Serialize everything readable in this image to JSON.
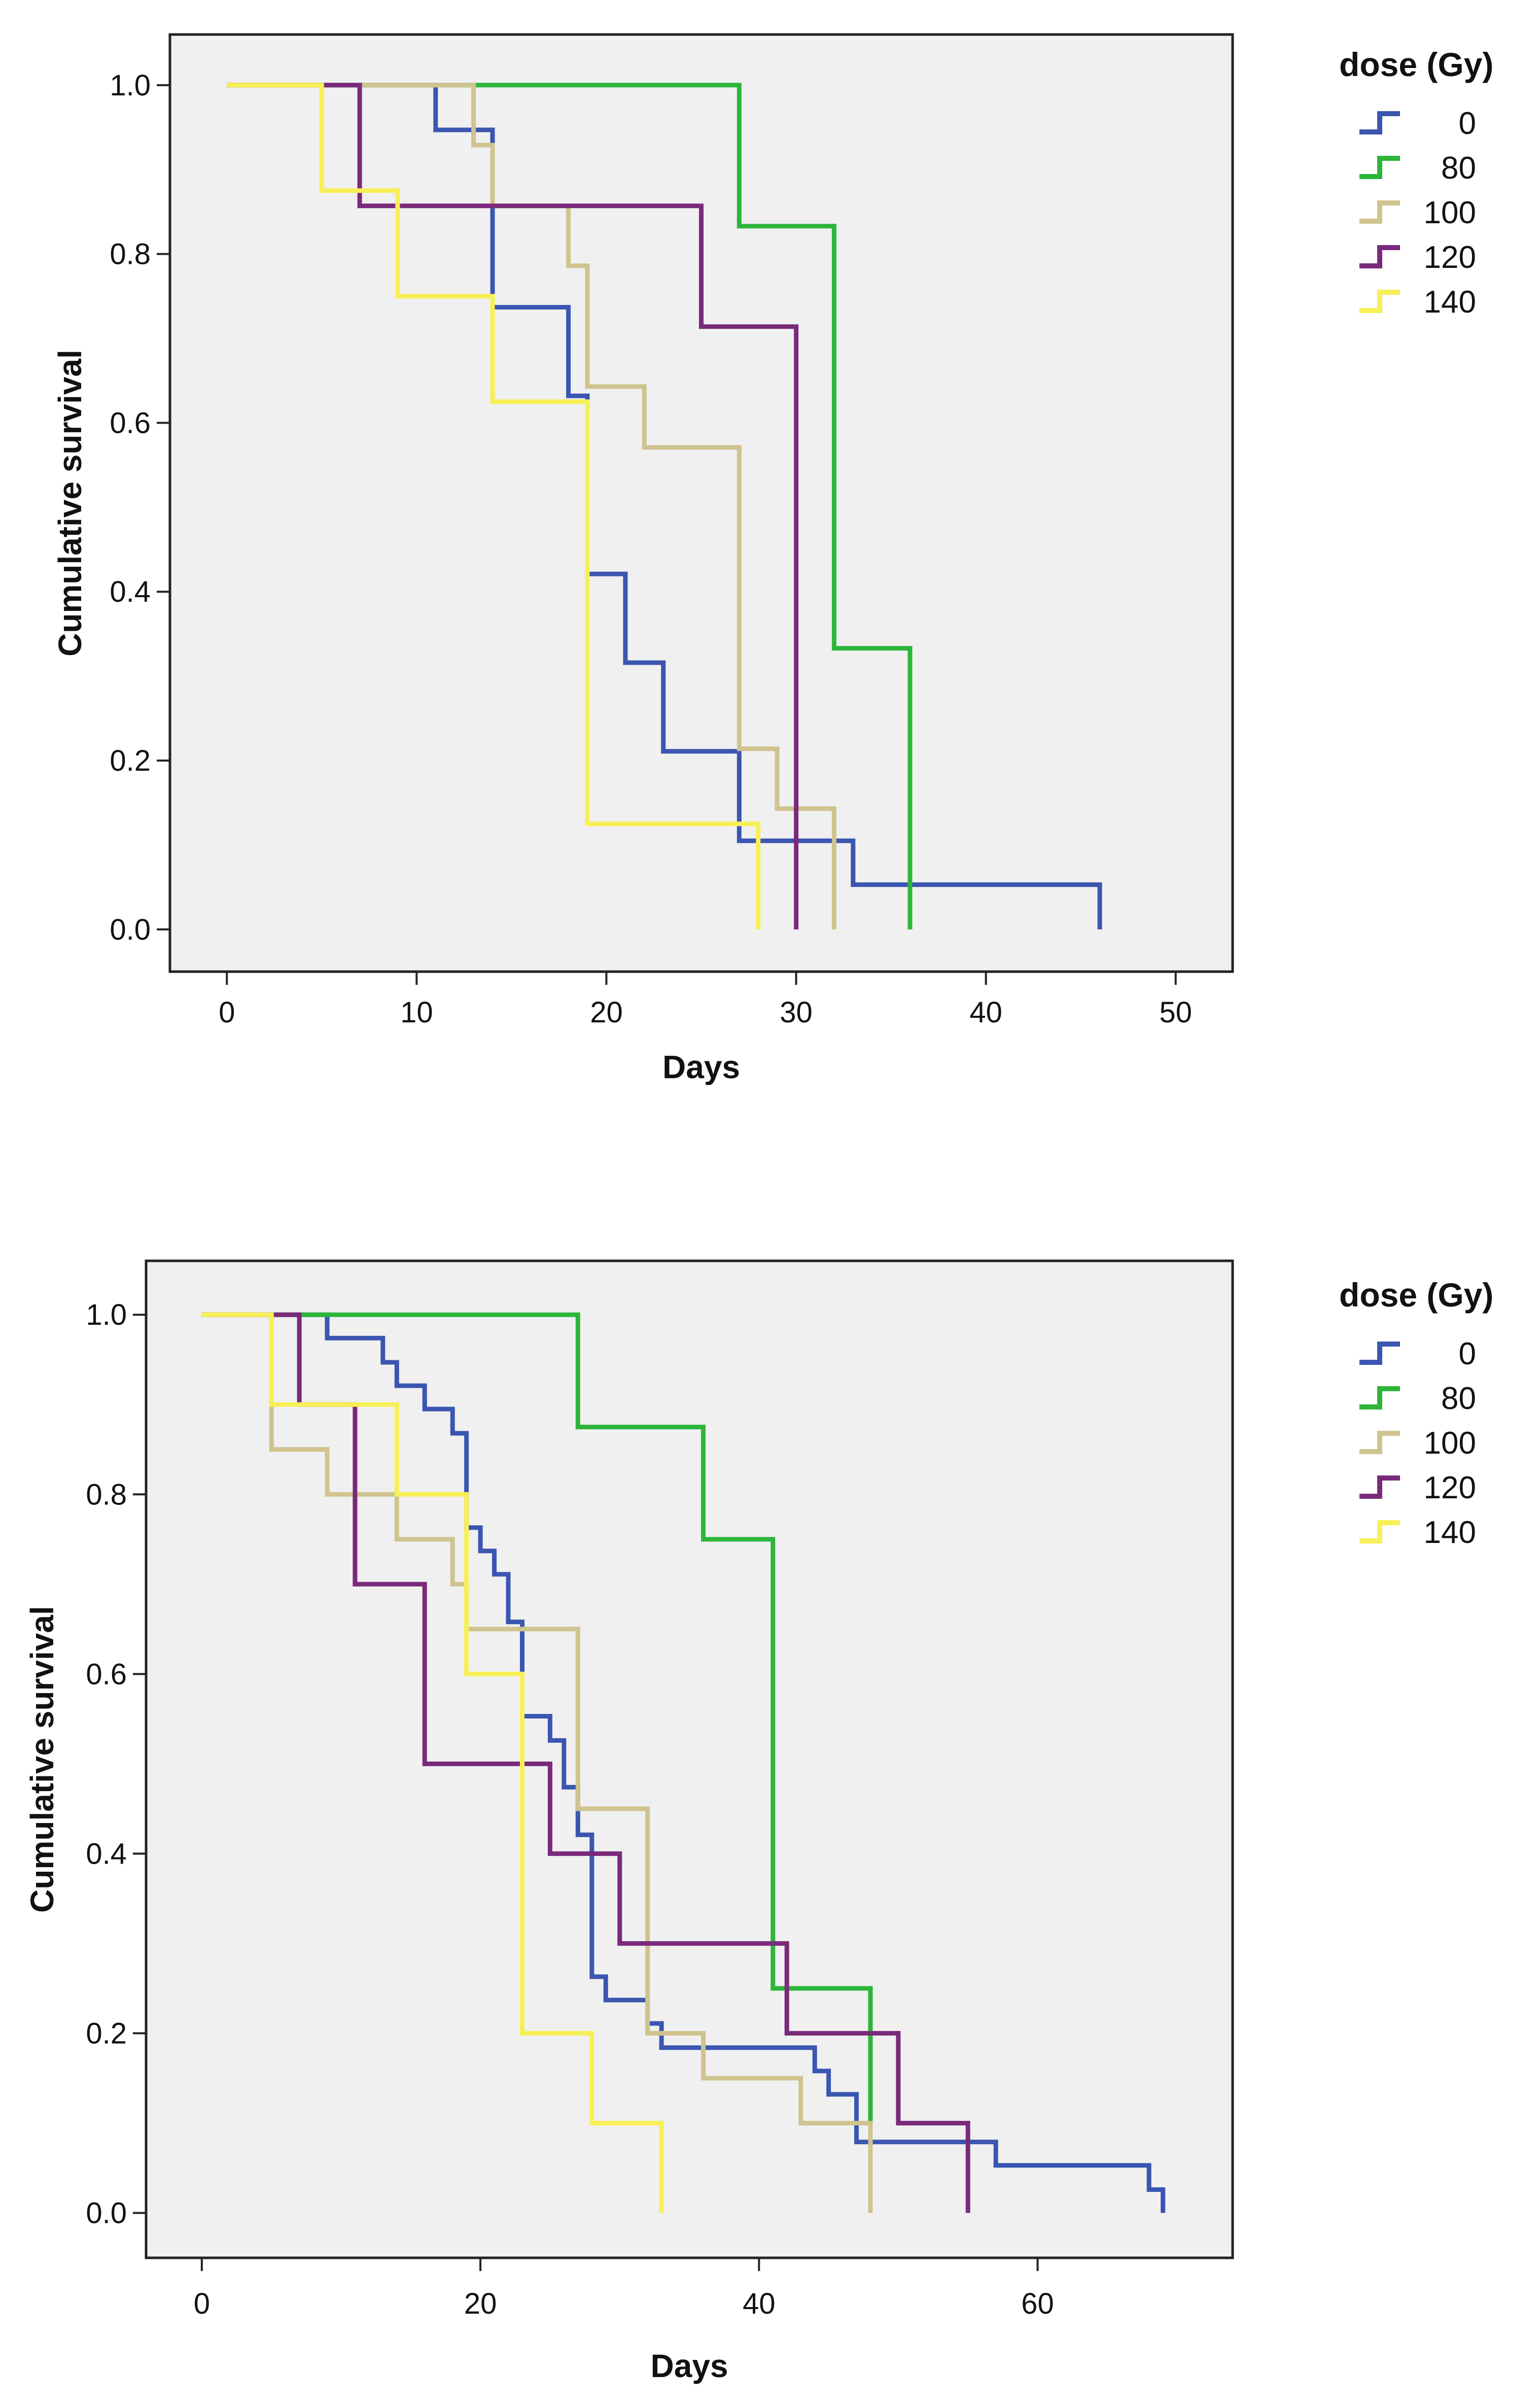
{
  "chart_data": [
    {
      "type": "line",
      "subtype": "kaplan-meier-step",
      "xlabel": "Days",
      "ylabel": "Cumulative survival",
      "xlim": [
        -3,
        53
      ],
      "ylim": [
        -0.05,
        1.06
      ],
      "xticks": [
        0,
        10,
        20,
        30,
        40,
        50
      ],
      "yticks": [
        0.0,
        0.2,
        0.4,
        0.6,
        0.8,
        1.0
      ],
      "xtick_labels": [
        "0",
        "10",
        "20",
        "30",
        "40",
        "50"
      ],
      "ytick_labels": [
        "0.0",
        "0.2",
        "0.4",
        "0.6",
        "0.8",
        "1.0"
      ],
      "legend_title": "dose (Gy)",
      "legend_position": "right",
      "series": [
        {
          "name": "0",
          "color": "#3a56b0",
          "points": [
            [
              0,
              1.0
            ],
            [
              11,
              1.0
            ],
            [
              11,
              0.947
            ],
            [
              14,
              0.947
            ],
            [
              14,
              0.737
            ],
            [
              18,
              0.737
            ],
            [
              18,
              0.632
            ],
            [
              19,
              0.632
            ],
            [
              19,
              0.421
            ],
            [
              21,
              0.421
            ],
            [
              21,
              0.316
            ],
            [
              23,
              0.316
            ],
            [
              23,
              0.211
            ],
            [
              27,
              0.211
            ],
            [
              27,
              0.105
            ],
            [
              33,
              0.105
            ],
            [
              33,
              0.053
            ],
            [
              46,
              0.053
            ],
            [
              46,
              0.0
            ]
          ]
        },
        {
          "name": "80",
          "color": "#2db53a",
          "points": [
            [
              0,
              1.0
            ],
            [
              27,
              1.0
            ],
            [
              27,
              0.833
            ],
            [
              32,
              0.833
            ],
            [
              32,
              0.333
            ],
            [
              36,
              0.333
            ],
            [
              36,
              0.0
            ]
          ]
        },
        {
          "name": "100",
          "color": "#cfc38f",
          "points": [
            [
              0,
              1.0
            ],
            [
              13,
              1.0
            ],
            [
              13,
              0.929
            ],
            [
              14,
              0.929
            ],
            [
              14,
              0.857
            ],
            [
              18,
              0.857
            ],
            [
              18,
              0.786
            ],
            [
              19,
              0.786
            ],
            [
              19,
              0.643
            ],
            [
              22,
              0.643
            ],
            [
              22,
              0.571
            ],
            [
              27,
              0.571
            ],
            [
              27,
              0.214
            ],
            [
              29,
              0.214
            ],
            [
              29,
              0.143
            ],
            [
              32,
              0.143
            ],
            [
              32,
              0.0
            ]
          ]
        },
        {
          "name": "120",
          "color": "#7a2a7a",
          "points": [
            [
              0,
              1.0
            ],
            [
              7,
              1.0
            ],
            [
              7,
              0.857
            ],
            [
              25,
              0.857
            ],
            [
              25,
              0.714
            ],
            [
              30,
              0.714
            ],
            [
              30,
              0.0
            ]
          ]
        },
        {
          "name": "140",
          "color": "#f7f056",
          "points": [
            [
              0,
              1.0
            ],
            [
              5,
              1.0
            ],
            [
              5,
              0.875
            ],
            [
              9,
              0.875
            ],
            [
              9,
              0.75
            ],
            [
              14,
              0.75
            ],
            [
              14,
              0.625
            ],
            [
              19,
              0.625
            ],
            [
              19,
              0.125
            ],
            [
              28,
              0.125
            ],
            [
              28,
              0.0
            ]
          ]
        }
      ]
    },
    {
      "type": "line",
      "subtype": "kaplan-meier-step",
      "xlabel": "Days",
      "ylabel": "Cumulative survival",
      "xlim": [
        -4,
        74
      ],
      "ylim": [
        -0.05,
        1.06
      ],
      "xticks": [
        0,
        20,
        40,
        60
      ],
      "yticks": [
        0.0,
        0.2,
        0.4,
        0.6,
        0.8,
        1.0
      ],
      "xtick_labels": [
        "0",
        "20",
        "40",
        "60"
      ],
      "ytick_labels": [
        "0.0",
        "0.2",
        "0.4",
        "0.6",
        "0.8",
        "1.0"
      ],
      "legend_title": "dose (Gy)",
      "legend_position": "right",
      "series": [
        {
          "name": "0",
          "color": "#3a56b0",
          "points": [
            [
              0,
              1.0
            ],
            [
              9,
              1.0
            ],
            [
              9,
              0.974
            ],
            [
              13,
              0.974
            ],
            [
              13,
              0.947
            ],
            [
              14,
              0.947
            ],
            [
              14,
              0.921
            ],
            [
              16,
              0.921
            ],
            [
              16,
              0.895
            ],
            [
              18,
              0.895
            ],
            [
              18,
              0.868
            ],
            [
              19,
              0.868
            ],
            [
              19,
              0.763
            ],
            [
              20,
              0.763
            ],
            [
              20,
              0.737
            ],
            [
              21,
              0.737
            ],
            [
              21,
              0.711
            ],
            [
              22,
              0.711
            ],
            [
              22,
              0.658
            ],
            [
              23,
              0.658
            ],
            [
              23,
              0.632
            ],
            [
              23,
              0.553
            ],
            [
              25,
              0.553
            ],
            [
              25,
              0.526
            ],
            [
              26,
              0.526
            ],
            [
              26,
              0.474
            ],
            [
              27,
              0.474
            ],
            [
              27,
              0.421
            ],
            [
              28,
              0.421
            ],
            [
              28,
              0.263
            ],
            [
              29,
              0.263
            ],
            [
              29,
              0.237
            ],
            [
              32,
              0.237
            ],
            [
              32,
              0.211
            ],
            [
              33,
              0.211
            ],
            [
              33,
              0.184
            ],
            [
              44,
              0.184
            ],
            [
              44,
              0.158
            ],
            [
              45,
              0.158
            ],
            [
              45,
              0.132
            ],
            [
              47,
              0.132
            ],
            [
              47,
              0.079
            ],
            [
              57,
              0.079
            ],
            [
              57,
              0.053
            ],
            [
              68,
              0.053
            ],
            [
              68,
              0.026
            ],
            [
              69,
              0.026
            ],
            [
              69,
              0.0
            ]
          ]
        },
        {
          "name": "80",
          "color": "#2db53a",
          "points": [
            [
              0,
              1.0
            ],
            [
              27,
              1.0
            ],
            [
              27,
              0.875
            ],
            [
              36,
              0.875
            ],
            [
              36,
              0.75
            ],
            [
              41,
              0.75
            ],
            [
              41,
              0.25
            ],
            [
              48,
              0.25
            ],
            [
              48,
              0.0
            ]
          ]
        },
        {
          "name": "100",
          "color": "#cfc38f",
          "points": [
            [
              0,
              1.0
            ],
            [
              5,
              1.0
            ],
            [
              5,
              0.85
            ],
            [
              9,
              0.85
            ],
            [
              9,
              0.8
            ],
            [
              14,
              0.8
            ],
            [
              14,
              0.75
            ],
            [
              18,
              0.75
            ],
            [
              18,
              0.7
            ],
            [
              19,
              0.7
            ],
            [
              19,
              0.65
            ],
            [
              27,
              0.65
            ],
            [
              27,
              0.45
            ],
            [
              32,
              0.45
            ],
            [
              32,
              0.2
            ],
            [
              36,
              0.2
            ],
            [
              36,
              0.15
            ],
            [
              43,
              0.15
            ],
            [
              43,
              0.1
            ],
            [
              48,
              0.1
            ],
            [
              48,
              0.0
            ]
          ]
        },
        {
          "name": "120",
          "color": "#7a2a7a",
          "points": [
            [
              0,
              1.0
            ],
            [
              7,
              1.0
            ],
            [
              7,
              0.9
            ],
            [
              11,
              0.9
            ],
            [
              11,
              0.7
            ],
            [
              16,
              0.7
            ],
            [
              16,
              0.5
            ],
            [
              25,
              0.5
            ],
            [
              25,
              0.4
            ],
            [
              30,
              0.4
            ],
            [
              30,
              0.3
            ],
            [
              42,
              0.3
            ],
            [
              42,
              0.2
            ],
            [
              50,
              0.2
            ],
            [
              50,
              0.1
            ],
            [
              55,
              0.1
            ],
            [
              55,
              0.0
            ]
          ]
        },
        {
          "name": "140",
          "color": "#f7f056",
          "points": [
            [
              0,
              1.0
            ],
            [
              5,
              1.0
            ],
            [
              5,
              0.9
            ],
            [
              14,
              0.9
            ],
            [
              14,
              0.8
            ],
            [
              19,
              0.8
            ],
            [
              19,
              0.6
            ],
            [
              23,
              0.6
            ],
            [
              23,
              0.2
            ],
            [
              28,
              0.2
            ],
            [
              28,
              0.1
            ],
            [
              33,
              0.1
            ],
            [
              33,
              0.0
            ]
          ]
        }
      ]
    }
  ]
}
